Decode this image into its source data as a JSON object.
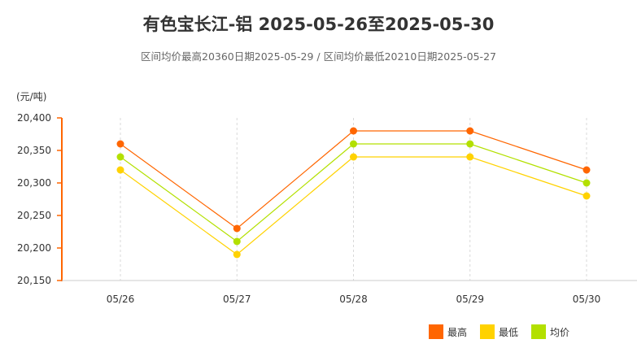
{
  "title": "有色宝长江-铝 2025-05-26至2025-05-30",
  "subtitle": "区间均价最高20360日期2025-05-29 / 区间均价最低20210日期2025-05-27",
  "chart_data": {
    "type": "line",
    "title": "有色宝长江-铝 2025-05-26至2025-05-30",
    "subtitle": "区间均价最高20360日期2025-05-29 / 区间均价最低20210日期2025-05-27",
    "y_unit": "(元/吨)",
    "categories": [
      "05/26",
      "05/27",
      "05/28",
      "05/29",
      "05/30"
    ],
    "ylim": [
      20150,
      20400
    ],
    "yticks": [
      20400,
      20350,
      20300,
      20250,
      20200,
      20150
    ],
    "ytick_labels": [
      "20,400",
      "20,350",
      "20,300",
      "20,250",
      "20,200",
      "20,150"
    ],
    "grid": "vertical dashed",
    "legend_position": "bottom-right",
    "series": [
      {
        "name": "最高",
        "color": "#ff6600",
        "values": [
          20360,
          20230,
          20380,
          20380,
          20320
        ]
      },
      {
        "name": "最低",
        "color": "#ffd200",
        "values": [
          20320,
          20190,
          20340,
          20340,
          20280
        ]
      },
      {
        "name": "均价",
        "color": "#b3e000",
        "values": [
          20340,
          20210,
          20360,
          20360,
          20300
        ]
      }
    ]
  }
}
